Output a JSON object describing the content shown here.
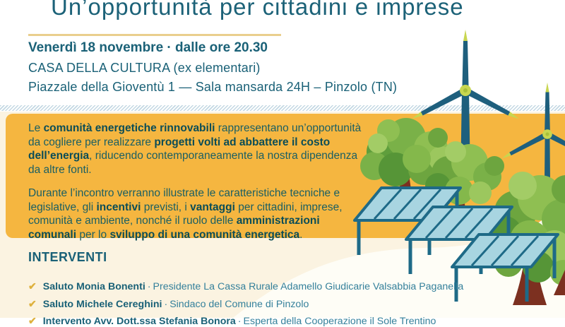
{
  "title": "Un’opportunità per cittadini e imprese",
  "event": {
    "date_line": "Venerdì 18 novembre · dalle ore 20.30",
    "venue_line": "CASA DELLA CULTURA (ex elementari)",
    "address_line": "Piazzale della Gioventù 1 — Sala mansarda 24H – Pinzolo (TN)"
  },
  "infobox": {
    "paragraph1": [
      {
        "text": "Le ",
        "bold": false
      },
      {
        "text": "comunità energetiche rinnovabili",
        "bold": true
      },
      {
        "text": " rappresentano un’opportunità da cogliere per realizzare ",
        "bold": false
      },
      {
        "text": "progetti volti ad abbattere il costo dell’energia",
        "bold": true
      },
      {
        "text": ", riducendo contemporaneamente la nostra dipendenza da altre fonti.",
        "bold": false
      }
    ],
    "paragraph2": [
      {
        "text": "Durante l’incontro verranno illustrate le caratteristiche tecniche e legislative, gli ",
        "bold": false
      },
      {
        "text": "incentivi",
        "bold": true
      },
      {
        "text": " previsti, i ",
        "bold": false
      },
      {
        "text": "vantaggi",
        "bold": true
      },
      {
        "text": " per cittadini, imprese, comunità e ambiente, nonché il ruolo delle ",
        "bold": false
      },
      {
        "text": "amministrazioni comunali",
        "bold": true
      },
      {
        "text": " per lo ",
        "bold": false
      },
      {
        "text": "sviluppo di una comunità energetica",
        "bold": true
      },
      {
        "text": ".",
        "bold": false
      }
    ]
  },
  "interventi": {
    "heading": "INTERVENTI",
    "check_glyph": "✔",
    "items": [
      {
        "bold": "Saluto Monia Bonenti",
        "separator": "·",
        "rest": "Presidente La Cassa Rurale Adamello Giudicarie Valsabbia Paganella"
      },
      {
        "bold": "Saluto Michele Cereghini",
        "separator": "·",
        "rest": "Sindaco del Comune di Pinzolo"
      },
      {
        "bold": "Intervento Avv. Dott.ssa Stefania Bonora",
        "separator": "·",
        "rest": "Esperta della Cooperazione il Sole Trentino"
      }
    ]
  },
  "illustration": {
    "elements": [
      "wind-turbine-large",
      "wind-turbine-small",
      "tree-left",
      "tree-middle",
      "tree-right-large",
      "solar-canopy-1",
      "solar-canopy-2",
      "solar-canopy-3",
      "white-hill",
      "hatched-band"
    ]
  },
  "colors": {
    "teal_text": "#1a6177",
    "teal_dark_bold": "#0b4d57",
    "orange_box": "#f5b640",
    "cream_background": "#fbf3e1",
    "gold_rule": "#e9cf8d",
    "check_gold": "#deb13e",
    "structure_teal": "#1e6a87",
    "panel_blue": "#a8d5e1",
    "leaf_greens": [
      "#8fbf52",
      "#6da53f",
      "#569537",
      "#a3cc66",
      "#84b84b"
    ],
    "trunk_brown": "#7c3020",
    "hub_green": "#c8d650"
  }
}
